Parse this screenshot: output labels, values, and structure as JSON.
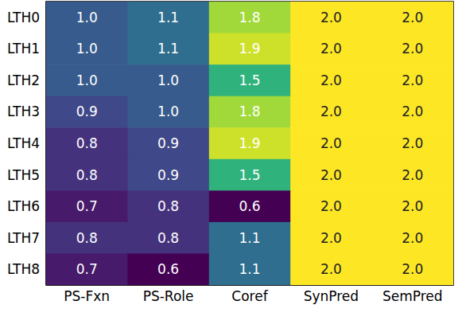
{
  "chart_data": {
    "type": "heatmap",
    "categories": [
      "PS-Fxn",
      "PS-Role",
      "Coref",
      "SynPred",
      "SemPred"
    ],
    "rows": [
      "LTH0",
      "LTH1",
      "LTH2",
      "LTH3",
      "LTH4",
      "LTH5",
      "LTH6",
      "LTH7",
      "LTH8"
    ],
    "values": [
      [
        1.0,
        1.1,
        1.8,
        2.0,
        2.0
      ],
      [
        1.0,
        1.1,
        1.9,
        2.0,
        2.0
      ],
      [
        1.0,
        1.0,
        1.5,
        2.0,
        2.0
      ],
      [
        0.9,
        1.0,
        1.8,
        2.0,
        2.0
      ],
      [
        0.8,
        0.9,
        1.9,
        2.0,
        2.0
      ],
      [
        0.8,
        0.9,
        1.5,
        2.0,
        2.0
      ],
      [
        0.7,
        0.8,
        0.6,
        2.0,
        2.0
      ],
      [
        0.8,
        0.8,
        1.1,
        2.0,
        2.0
      ],
      [
        0.7,
        0.6,
        1.1,
        2.0,
        2.0
      ]
    ],
    "value_labels": [
      [
        "1.0",
        "1.1",
        "1.8",
        "2.0",
        "2.0"
      ],
      [
        "1.0",
        "1.1",
        "1.9",
        "2.0",
        "2.0"
      ],
      [
        "1.0",
        "1.0",
        "1.5",
        "2.0",
        "2.0"
      ],
      [
        "0.9",
        "1.0",
        "1.8",
        "2.0",
        "2.0"
      ],
      [
        "0.8",
        "0.9",
        "1.9",
        "2.0",
        "2.0"
      ],
      [
        "0.8",
        "0.9",
        "1.5",
        "2.0",
        "2.0"
      ],
      [
        "0.7",
        "0.8",
        "0.6",
        "2.0",
        "2.0"
      ],
      [
        "0.8",
        "0.8",
        "1.1",
        "2.0",
        "2.0"
      ],
      [
        "0.7",
        "0.6",
        "1.1",
        "2.0",
        "2.0"
      ]
    ],
    "data_labels": true
  }
}
